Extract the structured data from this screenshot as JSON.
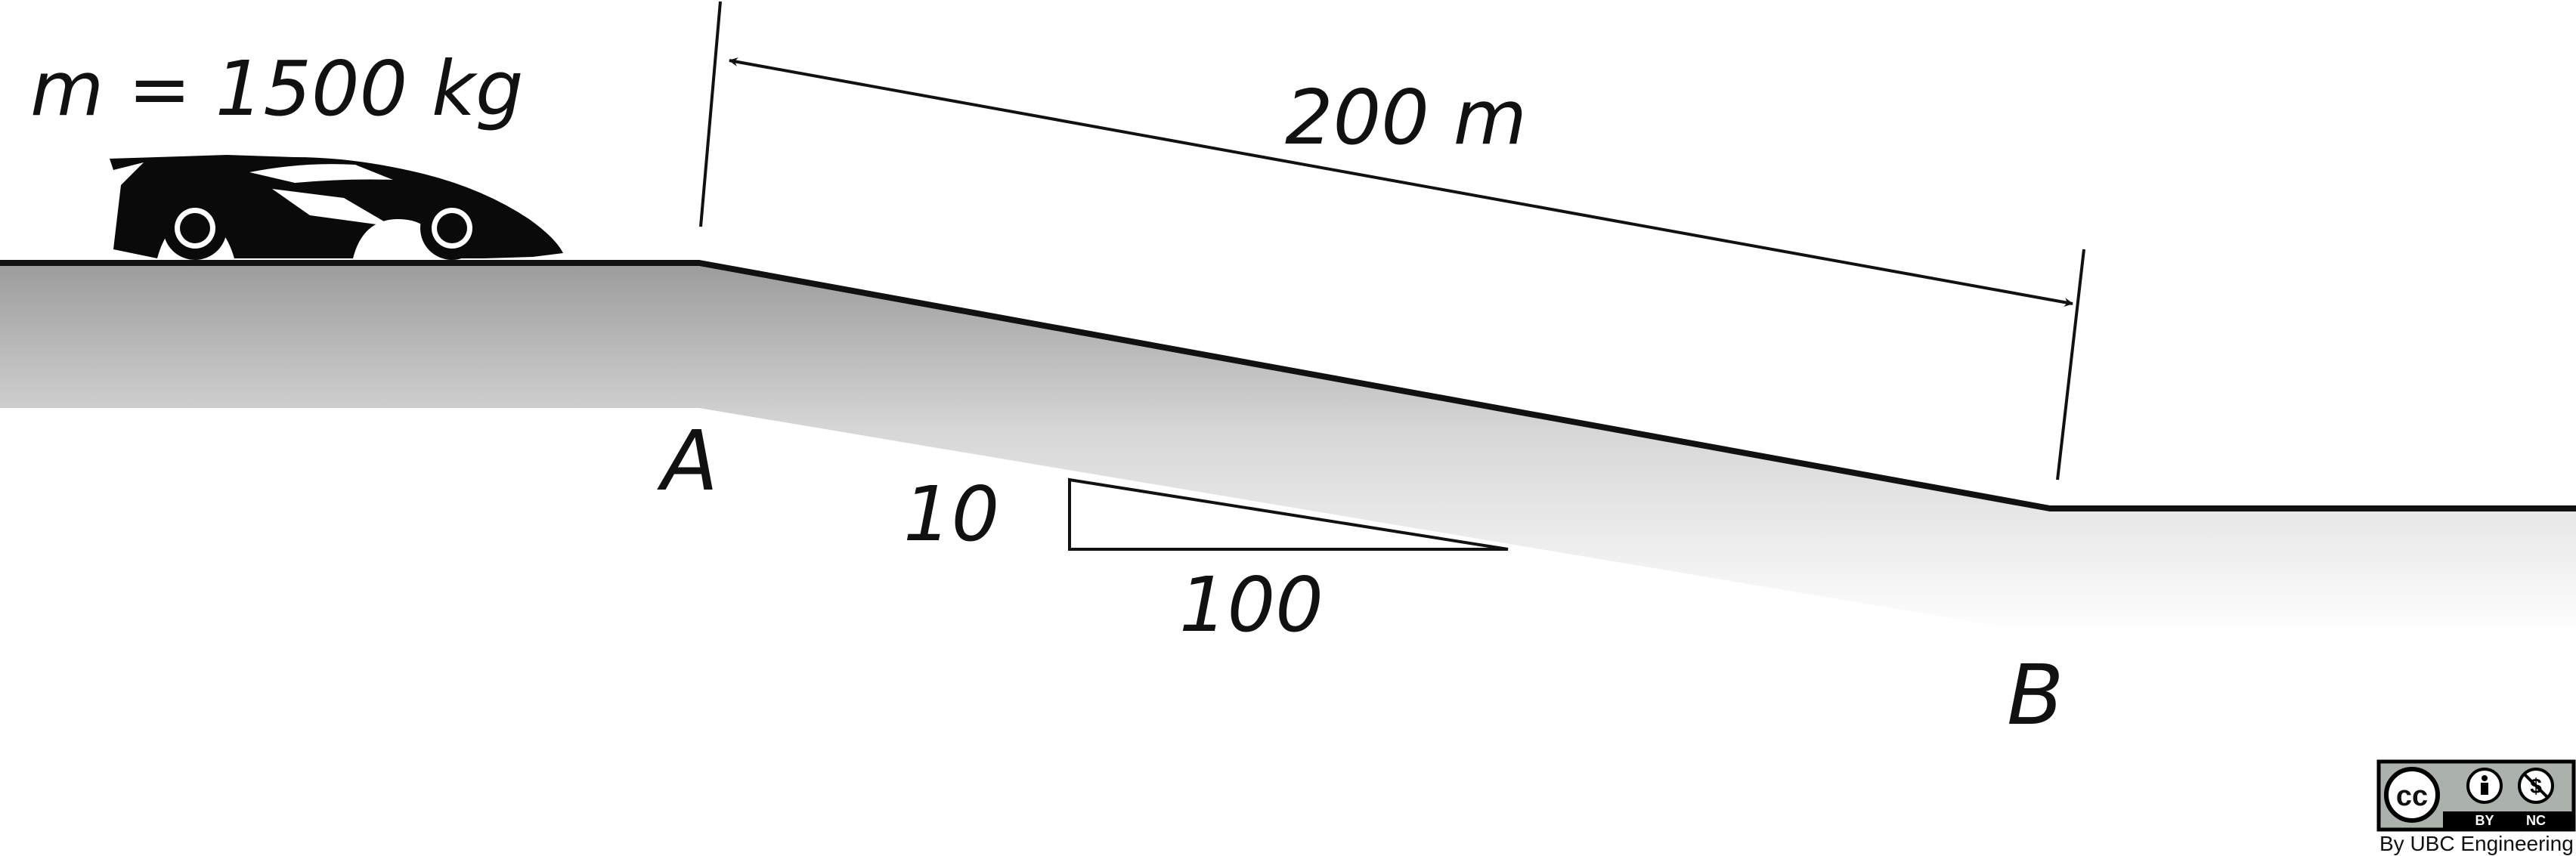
{
  "mass_label": "m = 1500 kg",
  "distance_label": "200 m",
  "point_a": "A",
  "point_b": "B",
  "slope": {
    "rise_label": "10",
    "run_label": "100"
  },
  "license": {
    "cc": "cc",
    "by": "BY",
    "nc": "NC",
    "credit": "By UBC Engineering"
  }
}
